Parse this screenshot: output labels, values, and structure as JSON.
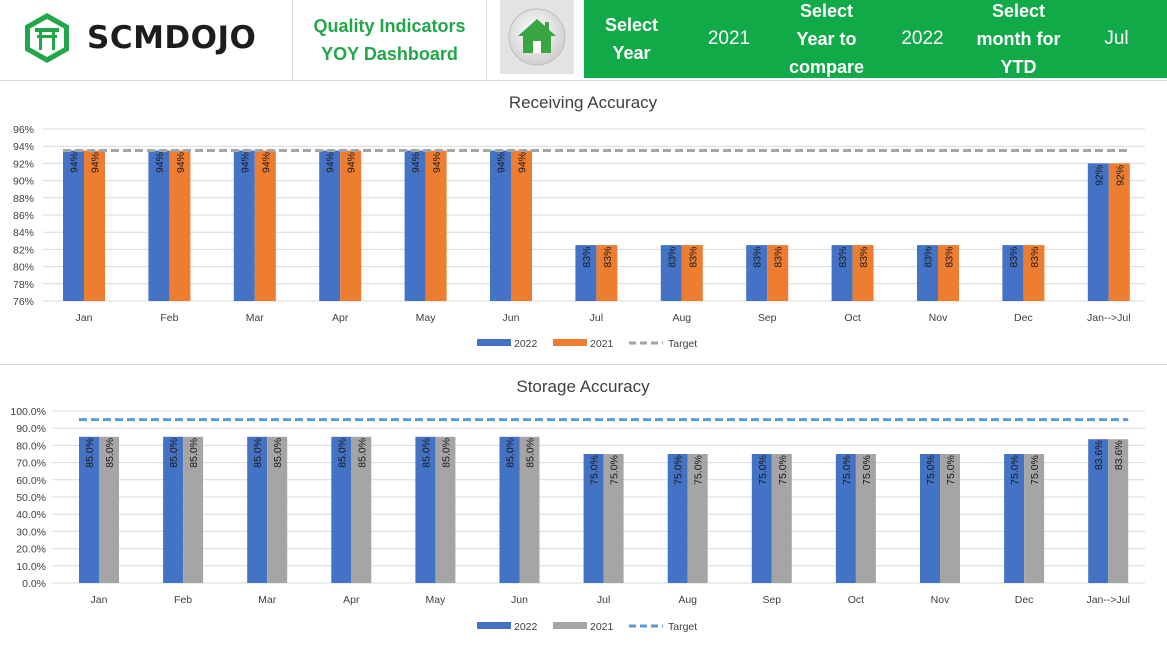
{
  "header": {
    "logo_text": "SCMDOJO",
    "title_line1": "Quality Indicators",
    "title_line2": "YOY Dashboard",
    "select_year_label_line1": "Select",
    "select_year_label_line2": "Year",
    "select_year_value": "2021",
    "compare_label_line1": "Select",
    "compare_label_line2": "Year to",
    "compare_label_line3": "compare",
    "compare_value": "2022",
    "month_label_line1": "Select",
    "month_label_line2": "month for",
    "month_label_line3": "YTD",
    "month_value": "Jul",
    "accent_color": "#11aa48",
    "title_color": "#22a64a"
  },
  "chart_data": [
    {
      "type": "bar",
      "title": "Receiving Accuracy",
      "categories": [
        "Jan",
        "Feb",
        "Mar",
        "Apr",
        "May",
        "Jun",
        "Jul",
        "Aug",
        "Sep",
        "Oct",
        "Nov",
        "Dec",
        "Jan-->Jul"
      ],
      "series": [
        {
          "name": "2022",
          "color": "#4472c4",
          "values": [
            93.5,
            93.5,
            93.5,
            93.5,
            93.5,
            93.5,
            82.5,
            82.5,
            82.5,
            82.5,
            82.5,
            82.5,
            92
          ],
          "labels": [
            "94%",
            "94%",
            "94%",
            "94%",
            "94%",
            "94%",
            "83%",
            "83%",
            "83%",
            "83%",
            "83%",
            "83%",
            "92%"
          ]
        },
        {
          "name": "2021",
          "color": "#ed7d31",
          "values": [
            93.5,
            93.5,
            93.5,
            93.5,
            93.5,
            93.5,
            82.5,
            82.5,
            82.5,
            82.5,
            82.5,
            82.5,
            92
          ],
          "labels": [
            "94%",
            "94%",
            "94%",
            "94%",
            "94%",
            "94%",
            "83%",
            "83%",
            "83%",
            "83%",
            "83%",
            "83%",
            "92%"
          ]
        }
      ],
      "target": {
        "name": "Target",
        "value": 93.5,
        "color": "#a5a5a5"
      },
      "ylim": [
        76,
        96
      ],
      "yticks": [
        76,
        78,
        80,
        82,
        84,
        86,
        88,
        90,
        92,
        94,
        96
      ],
      "ytick_labels": [
        "76%",
        "78%",
        "80%",
        "82%",
        "84%",
        "86%",
        "88%",
        "90%",
        "92%",
        "94%",
        "96%"
      ],
      "grid": true,
      "legend": "bottom"
    },
    {
      "type": "bar",
      "title": "Storage Accuracy",
      "categories": [
        "Jan",
        "Feb",
        "Mar",
        "Apr",
        "May",
        "Jun",
        "Jul",
        "Aug",
        "Sep",
        "Oct",
        "Nov",
        "Dec",
        "Jan-->Jul"
      ],
      "series": [
        {
          "name": "2022",
          "color": "#4472c4",
          "values": [
            85,
            85,
            85,
            85,
            85,
            85,
            75,
            75,
            75,
            75,
            75,
            75,
            83.6
          ],
          "labels": [
            "85.0%",
            "85.0%",
            "85.0%",
            "85.0%",
            "85.0%",
            "85.0%",
            "75.0%",
            "75.0%",
            "75.0%",
            "75.0%",
            "75.0%",
            "75.0%",
            "83.6%"
          ]
        },
        {
          "name": "2021",
          "color": "#a5a5a5",
          "values": [
            85,
            85,
            85,
            85,
            85,
            85,
            75,
            75,
            75,
            75,
            75,
            75,
            83.6
          ],
          "labels": [
            "85.0%",
            "85.0%",
            "85.0%",
            "85.0%",
            "85.0%",
            "85.0%",
            "75.0%",
            "75.0%",
            "75.0%",
            "75.0%",
            "75.0%",
            "75.0%",
            "83.6%"
          ]
        }
      ],
      "target": {
        "name": "Target",
        "value": 95,
        "color": "#5b9bd5"
      },
      "ylim": [
        0,
        100
      ],
      "yticks": [
        0,
        10,
        20,
        30,
        40,
        50,
        60,
        70,
        80,
        90,
        100
      ],
      "ytick_labels": [
        "0.0%",
        "10.0%",
        "20.0%",
        "30.0%",
        "40.0%",
        "50.0%",
        "60.0%",
        "70.0%",
        "80.0%",
        "90.0%",
        "100.0%"
      ],
      "grid": true,
      "legend": "bottom"
    }
  ]
}
